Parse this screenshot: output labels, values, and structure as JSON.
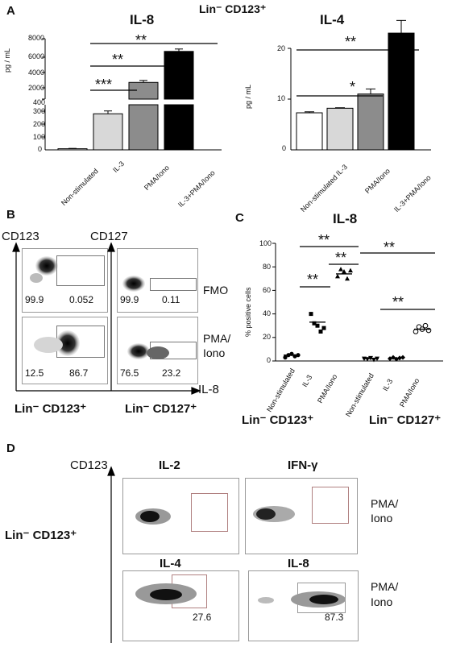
{
  "panel_labels": {
    "a": "A",
    "b": "B",
    "c": "C",
    "d": "D"
  },
  "panel_a": {
    "header": "Lin⁻ CD123⁺",
    "il8": {
      "title": "IL-8",
      "ylabel": "pg / mL",
      "upper_ticks": [
        "8000",
        "6000",
        "4000",
        "2000",
        "400"
      ],
      "lower_ticks": [
        "300",
        "200",
        "100",
        "0"
      ],
      "categories": [
        "Non-stimulated",
        "IL-3",
        "PMA/Iono",
        "IL-3+PMA/Iono"
      ],
      "stars": [
        "***",
        "**",
        "**"
      ]
    },
    "il4": {
      "title": "IL-4",
      "ylabel": "pg / mL",
      "ticks": [
        "20",
        "10",
        "0"
      ],
      "categories": [
        "Non-stimulated",
        "IL-3",
        "PMA/Iono",
        "IL-3+PMA/Iono"
      ],
      "stars": [
        "*",
        "**"
      ]
    }
  },
  "panel_b": {
    "y_label_1": "CD123",
    "y_label_2": "CD127",
    "x_label": "IL-8",
    "row_label_fmo": "FMO",
    "row_label_pma_1": "PMA/",
    "row_label_pma_2": "Iono",
    "fmo_cd123": [
      "99.9",
      "0.052"
    ],
    "fmo_cd127": [
      "99.9",
      "0.11"
    ],
    "pma_cd123": [
      "12.5",
      "86.7"
    ],
    "pma_cd127": [
      "76.5",
      "23.2"
    ],
    "bottom_label_1": "Lin⁻ CD123⁺",
    "bottom_label_2": "Lin⁻ CD127⁺"
  },
  "panel_c": {
    "title": "IL-8",
    "ylabel": "% positive cells",
    "ticks": [
      "100",
      "80",
      "60",
      "40",
      "20",
      "0"
    ],
    "categories": [
      "Non-stimulated",
      "IL-3",
      "PMA/Iono",
      "Non-stimulated",
      "IL-3",
      "PMA/Iono"
    ],
    "stars": [
      "**",
      "**",
      "**",
      "**",
      "**"
    ],
    "group_label_1": "Lin⁻ CD123⁺",
    "group_label_2": "Lin⁻ CD127⁺"
  },
  "panel_d": {
    "y_label": "CD123",
    "side_label": "Lin⁻ CD123⁺",
    "plots": [
      "IL-2",
      "IFN-γ",
      "IL-4",
      "IL-8"
    ],
    "row_label_1a": "PMA/",
    "row_label_1b": "Iono",
    "row_label_2a": "PMA/",
    "row_label_2b": "Iono",
    "val_il4": "27.6",
    "val_il8": "87.3"
  },
  "chart_data": [
    {
      "type": "bar",
      "title": "IL-8",
      "ylabel": "pg / mL",
      "categories": [
        "Non-stimulated",
        "IL-3",
        "PMA/Iono",
        "IL-3+PMA/Iono"
      ],
      "values": [
        10,
        320,
        2500,
        6400
      ],
      "errors": [
        3,
        25,
        250,
        300
      ],
      "colors": [
        "#ffffff",
        "#d8d8d8",
        "#8c8c8c",
        "#000000"
      ],
      "broken_axis": {
        "lower": [
          0,
          400
        ],
        "upper": [
          400,
          8000
        ]
      }
    },
    {
      "type": "bar",
      "title": "IL-4",
      "ylabel": "pg / mL",
      "categories": [
        "Non-stimulated",
        "IL-3",
        "PMA/Iono",
        "IL-3+PMA/Iono"
      ],
      "values": [
        7.3,
        8.2,
        11,
        23
      ],
      "errors": [
        0.2,
        0.1,
        1,
        2.5
      ],
      "colors": [
        "#ffffff",
        "#d8d8d8",
        "#8c8c8c",
        "#000000"
      ],
      "ylim": [
        0,
        30
      ]
    },
    {
      "type": "scatter",
      "title": "IL-8",
      "ylabel": "% positive cells",
      "ylim": [
        0,
        100
      ],
      "categories": [
        "Non-stimulated",
        "IL-3",
        "PMA/Iono",
        "Non-stimulated",
        "IL-3",
        "PMA/Iono"
      ],
      "series": [
        {
          "values": [
            3,
            5,
            6,
            4,
            5
          ],
          "mean": 5,
          "marker": "circle-filled"
        },
        {
          "values": [
            40,
            32,
            30,
            25,
            28
          ],
          "mean": 33,
          "marker": "square"
        },
        {
          "values": [
            72,
            78,
            76,
            70,
            77
          ],
          "mean": 74,
          "marker": "triangle"
        },
        {
          "values": [
            2,
            1.5,
            2.5,
            1,
            2
          ],
          "mean": 2,
          "marker": "triangle-down"
        },
        {
          "values": [
            2,
            3,
            1.5,
            2.5,
            3
          ],
          "mean": 2.5,
          "marker": "diamond"
        },
        {
          "values": [
            25,
            29,
            27,
            30,
            26
          ],
          "mean": 27,
          "marker": "circle-open"
        }
      ]
    }
  ]
}
